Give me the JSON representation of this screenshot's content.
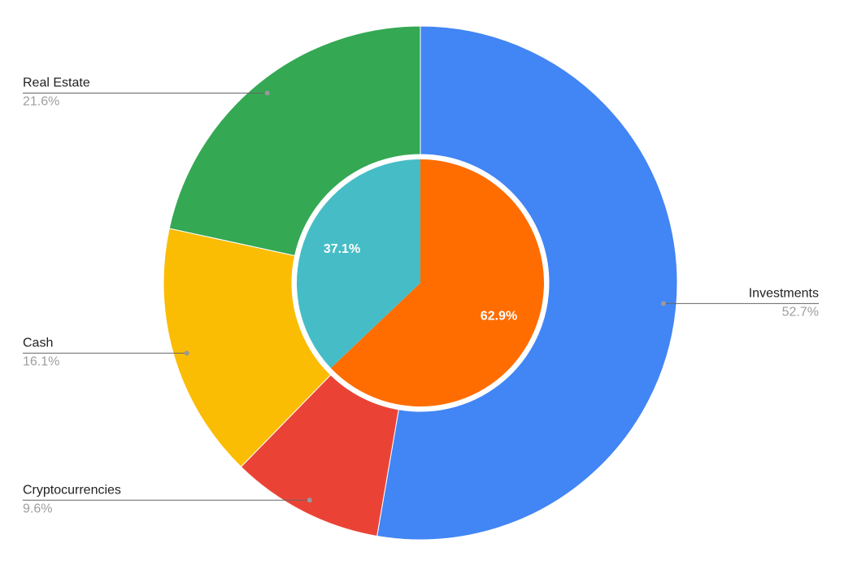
{
  "chart_data": {
    "type": "pie",
    "rings": [
      {
        "categories": [
          "Investments",
          "Cryptocurrencies",
          "Cash",
          "Real Estate"
        ],
        "values": [
          52.7,
          9.6,
          16.1,
          21.6
        ],
        "value_labels": [
          "52.7%",
          "9.6%",
          "16.1%",
          "21.6%"
        ],
        "colors": [
          "#4285f4",
          "#ea4335",
          "#fbbc04",
          "#34a853"
        ]
      },
      {
        "values": [
          62.9,
          37.1
        ],
        "value_labels": [
          "62.9%",
          "37.1%"
        ],
        "colors": [
          "#ff6d01",
          "#46bdc6"
        ]
      }
    ]
  }
}
